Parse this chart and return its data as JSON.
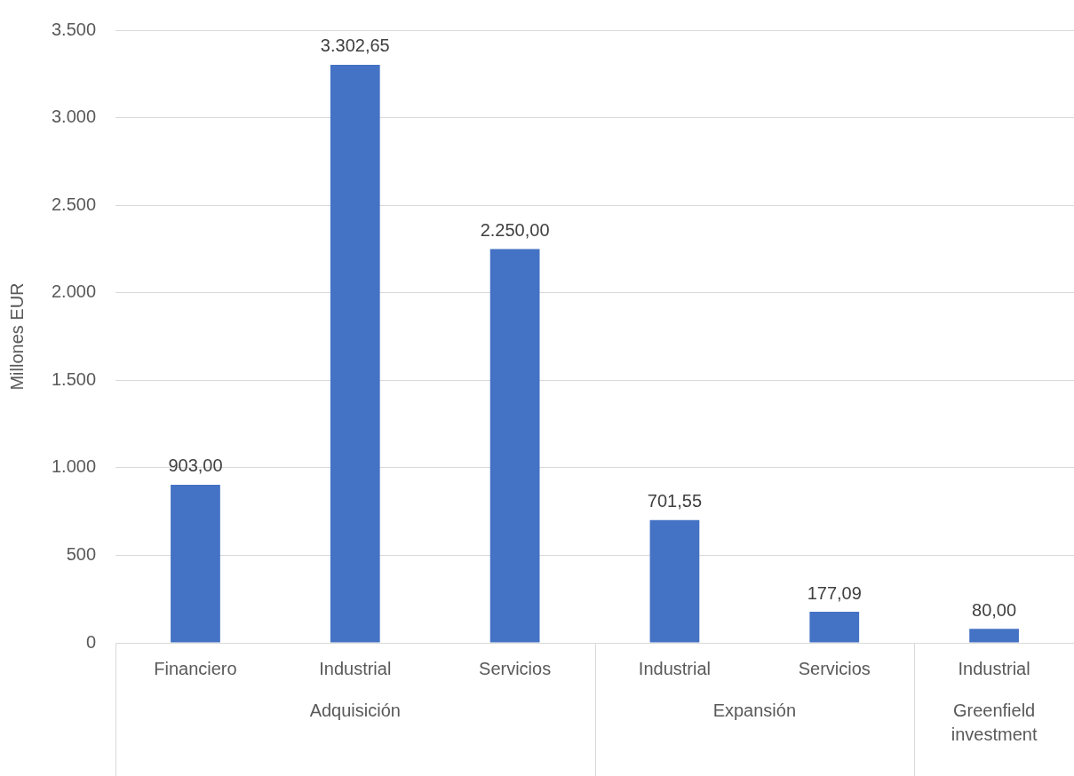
{
  "chart_data": {
    "type": "bar",
    "ylabel": "Millones EUR",
    "categories": [
      "Financiero",
      "Industrial",
      "Servicios",
      "Industrial",
      "Servicios",
      "Industrial"
    ],
    "values": [
      903.0,
      3302.65,
      2250.0,
      701.55,
      177.09,
      80.0
    ],
    "value_labels": [
      "903,00",
      "3.302,65",
      "2.250,00",
      "701,55",
      "177,09",
      "80,00"
    ],
    "color": "#4472c4",
    "ylim": [
      0,
      3500
    ],
    "yticks": [
      0,
      500,
      {
        "value": 1000,
        "label": "1.000"
      },
      {
        "value": 1500,
        "label": "1.500"
      },
      {
        "value": 2000,
        "label": "2.000"
      },
      {
        "value": 2500,
        "label": "2.500"
      },
      {
        "value": 3000,
        "label": "3.000"
      },
      {
        "value": 3500,
        "label": "3.500"
      }
    ],
    "grid": "y",
    "legend": false,
    "annotations": [
      "Adquisición",
      "Expansión",
      "Greenfield investment"
    ]
  }
}
